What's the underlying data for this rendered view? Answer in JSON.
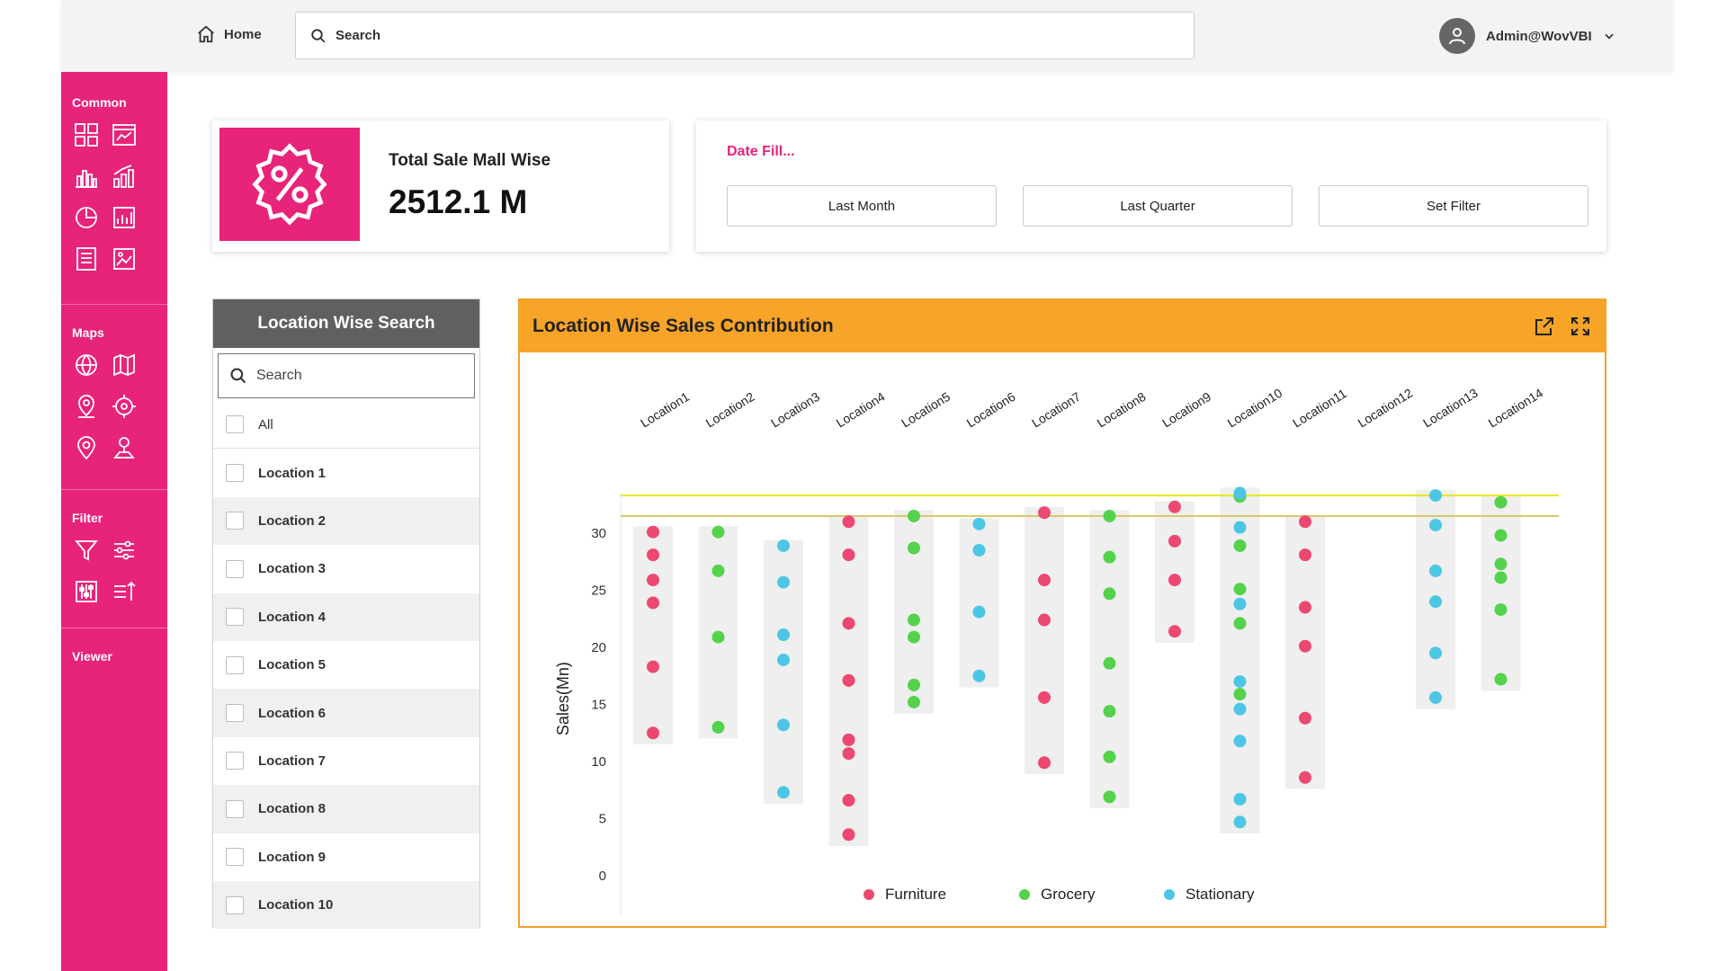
{
  "header": {
    "home_label": "Home",
    "search_placeholder": "Search",
    "user_name": "Admin@WovVBI"
  },
  "sidebar": {
    "sections": [
      {
        "title": "Common",
        "icons": [
          "dashboard-grid-icon",
          "line-chart-window-icon",
          "bar-chart-icon",
          "combo-chart-icon",
          "pie-chart-icon",
          "image-chart-icon",
          "report-list-icon",
          "gallery-icon"
        ]
      },
      {
        "title": "Maps",
        "icons": [
          "globe-map-icon",
          "folded-map-icon",
          "location-user-icon",
          "crosshair-icon",
          "map-pin-icon",
          "user-pin-icon"
        ]
      },
      {
        "title": "Filter",
        "icons": [
          "funnel-icon",
          "sliders-icon",
          "equalizer-icon",
          "sort-up-icon"
        ]
      },
      {
        "title": "Viewer",
        "icons": []
      }
    ]
  },
  "kpi": {
    "title": "Total Sale Mall Wise",
    "value": "2512.1 M",
    "icon": "percent-badge-icon"
  },
  "date_filter": {
    "title": "Date Fill...",
    "buttons": [
      "Last Month",
      "Last Quarter",
      "Set Filter"
    ]
  },
  "location_search": {
    "title": "Location Wise Search",
    "search_placeholder": "Search",
    "items": [
      "All",
      "Location 1",
      "Location 2",
      "Location 3",
      "Location 4",
      "Location 5",
      "Location 6",
      "Location 7",
      "Location 8",
      "Location 9",
      "Location 10"
    ]
  },
  "chart_panel": {
    "title": "Location Wise Sales Contribution",
    "icons": [
      "export-icon",
      "fullscreen-icon"
    ]
  },
  "colors": {
    "brand_pink": "#e8237a",
    "accent_orange": "#f7a428",
    "furniture": "#ec4870",
    "grocery": "#55d24c",
    "stationary": "#4dc6e6"
  },
  "chart_data": {
    "type": "scatter",
    "title": "",
    "xlabel": "",
    "ylabel": "Sales(Mn)",
    "categories": [
      "Location1",
      "Location2",
      "Location3",
      "Location4",
      "Location5",
      "Location6",
      "Location7",
      "Location8",
      "Location9",
      "Location10",
      "Location11",
      "Location12",
      "Location13",
      "Location14"
    ],
    "yticks": [
      0,
      5,
      10,
      15,
      20,
      25,
      30
    ],
    "grid": false,
    "legend": "bottom",
    "reference_lines": [
      33.3,
      31.5
    ],
    "series": [
      {
        "name": "Furniture",
        "points": [
          [
            0,
            30.1
          ],
          [
            0,
            28.1
          ],
          [
            0,
            25.9
          ],
          [
            0,
            23.9
          ],
          [
            0,
            18.3
          ],
          [
            0,
            12.5
          ],
          [
            3,
            31
          ],
          [
            3,
            28.1
          ],
          [
            3,
            22.1
          ],
          [
            3,
            17.1
          ],
          [
            3,
            11.9
          ],
          [
            3,
            10.7
          ],
          [
            3,
            6.6
          ],
          [
            3,
            3.6
          ],
          [
            6,
            31.8
          ],
          [
            6,
            25.9
          ],
          [
            6,
            22.4
          ],
          [
            6,
            15.6
          ],
          [
            6,
            9.9
          ],
          [
            8,
            32.3
          ],
          [
            8,
            29.3
          ],
          [
            8,
            25.9
          ],
          [
            8,
            21.4
          ],
          [
            10,
            31
          ],
          [
            10,
            28.1
          ],
          [
            10,
            23.5
          ],
          [
            10,
            20.1
          ],
          [
            10,
            13.8
          ],
          [
            10,
            8.6
          ]
        ]
      },
      {
        "name": "Grocery",
        "points": [
          [
            1,
            30.1
          ],
          [
            1,
            26.7
          ],
          [
            1,
            20.9
          ],
          [
            1,
            13
          ],
          [
            4,
            31.5
          ],
          [
            4,
            28.7
          ],
          [
            4,
            22.4
          ],
          [
            4,
            20.9
          ],
          [
            4,
            16.7
          ],
          [
            4,
            15.2
          ],
          [
            7,
            31.5
          ],
          [
            7,
            27.9
          ],
          [
            7,
            24.7
          ],
          [
            7,
            18.6
          ],
          [
            7,
            14.4
          ],
          [
            7,
            10.4
          ],
          [
            7,
            6.9
          ],
          [
            9,
            33.2
          ],
          [
            9,
            28.9
          ],
          [
            9,
            25.1
          ],
          [
            9,
            22.1
          ],
          [
            9,
            15.9
          ],
          [
            13,
            32.7
          ],
          [
            13,
            29.8
          ],
          [
            13,
            27.3
          ],
          [
            13,
            26.1
          ],
          [
            13,
            23.3
          ],
          [
            13,
            17.2
          ]
        ]
      },
      {
        "name": "Stationary",
        "points": [
          [
            2,
            28.9
          ],
          [
            2,
            25.7
          ],
          [
            2,
            21.1
          ],
          [
            2,
            18.9
          ],
          [
            2,
            13.2
          ],
          [
            2,
            7.3
          ],
          [
            5,
            30.8
          ],
          [
            5,
            28.5
          ],
          [
            5,
            23.1
          ],
          [
            5,
            17.5
          ],
          [
            9,
            33.5
          ],
          [
            9,
            30.5
          ],
          [
            9,
            23.8
          ],
          [
            9,
            17
          ],
          [
            9,
            14.6
          ],
          [
            9,
            11.8
          ],
          [
            9,
            6.7
          ],
          [
            9,
            4.7
          ],
          [
            12,
            33.3
          ],
          [
            12,
            30.7
          ],
          [
            12,
            26.7
          ],
          [
            12,
            24
          ],
          [
            12,
            19.5
          ],
          [
            12,
            15.6
          ]
        ]
      }
    ]
  }
}
